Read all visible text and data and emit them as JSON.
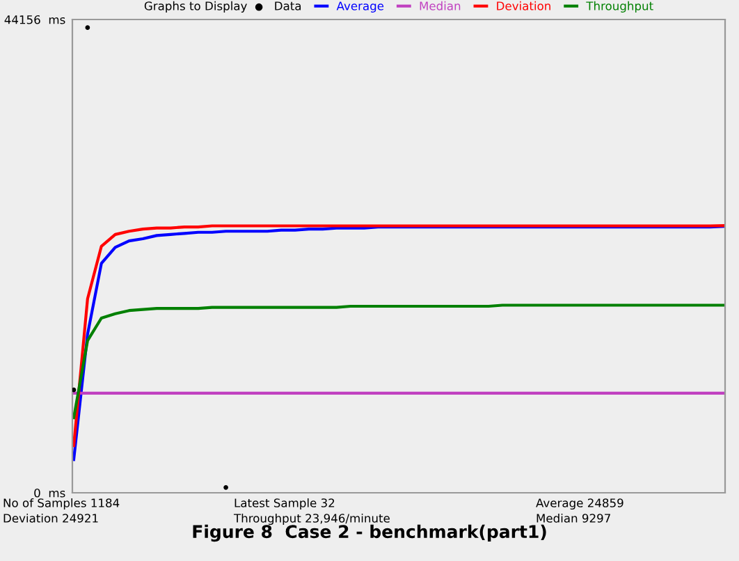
{
  "chart_data": {
    "type": "line",
    "title": "Figure 8  Case 2 - benchmark(part1)",
    "legend_title": "Graphs to Display",
    "legend": "top",
    "tick_labels": "y",
    "categories": [
      null,
      null,
      null,
      null,
      null,
      null,
      null,
      null,
      null,
      null,
      null,
      null,
      null,
      null,
      null,
      null,
      null,
      null,
      null,
      null,
      null,
      null,
      null,
      null,
      null,
      null,
      null,
      null,
      null,
      null,
      null,
      null,
      null,
      null,
      null,
      null,
      null,
      null,
      null,
      null,
      null,
      null,
      null,
      null,
      null,
      null,
      null,
      null
    ],
    "ylim": [
      0,
      44156
    ],
    "yticks": [
      {
        "value": 0,
        "label": "0  ms"
      },
      {
        "value": 44156,
        "label": "44156  ms"
      }
    ],
    "series": [
      {
        "name": "Data",
        "type": "scatter",
        "color": "#000000",
        "values": [
          9600,
          43400,
          null,
          null,
          null,
          null,
          null,
          null,
          null,
          null,
          null,
          500,
          null,
          null,
          null,
          null,
          null,
          null,
          null,
          null,
          null,
          null,
          null,
          null,
          null,
          null,
          null,
          null,
          null,
          null,
          null,
          null,
          null,
          null,
          null,
          null,
          null,
          null,
          null,
          null,
          null,
          null,
          null,
          null,
          null,
          null,
          null,
          null
        ]
      },
      {
        "name": "Average",
        "color": "#0000ff",
        "values": [
          3100,
          14800,
          21400,
          22900,
          23500,
          23700,
          24000,
          24100,
          24200,
          24300,
          24300,
          24400,
          24400,
          24400,
          24400,
          24500,
          24500,
          24600,
          24600,
          24700,
          24700,
          24700,
          24800,
          24800,
          24800,
          24800,
          24800,
          24800,
          24800,
          24800,
          24800,
          24800,
          24800,
          24800,
          24800,
          24800,
          24800,
          24800,
          24800,
          24800,
          24800,
          24800,
          24800,
          24800,
          24800,
          24800,
          24800,
          24859
        ]
      },
      {
        "name": "Median",
        "color": "#c040c0",
        "values": [
          9297,
          9297,
          9297,
          9297,
          9297,
          9297,
          9297,
          9297,
          9297,
          9297,
          9297,
          9297,
          9297,
          9297,
          9297,
          9297,
          9297,
          9297,
          9297,
          9297,
          9297,
          9297,
          9297,
          9297,
          9297,
          9297,
          9297,
          9297,
          9297,
          9297,
          9297,
          9297,
          9297,
          9297,
          9297,
          9297,
          9297,
          9297,
          9297,
          9297,
          9297,
          9297,
          9297,
          9297,
          9297,
          9297,
          9297,
          9297
        ]
      },
      {
        "name": "Deviation",
        "color": "#ff0000",
        "values": [
          4400,
          18100,
          23000,
          24100,
          24400,
          24600,
          24700,
          24700,
          24800,
          24800,
          24900,
          24900,
          24900,
          24900,
          24900,
          24900,
          24900,
          24900,
          24900,
          24900,
          24900,
          24900,
          24900,
          24900,
          24900,
          24900,
          24900,
          24900,
          24900,
          24900,
          24900,
          24900,
          24900,
          24900,
          24900,
          24900,
          24900,
          24900,
          24900,
          24900,
          24900,
          24900,
          24900,
          24900,
          24900,
          24900,
          24900,
          24921
        ]
      },
      {
        "name": "Throughput",
        "color": "#008000",
        "values": [
          7000,
          14200,
          16300,
          16700,
          17000,
          17100,
          17200,
          17200,
          17200,
          17200,
          17300,
          17300,
          17300,
          17300,
          17300,
          17300,
          17300,
          17300,
          17300,
          17300,
          17400,
          17400,
          17400,
          17400,
          17400,
          17400,
          17400,
          17400,
          17400,
          17400,
          17400,
          17500,
          17500,
          17500,
          17500,
          17500,
          17500,
          17500,
          17500,
          17500,
          17500,
          17500,
          17500,
          17500,
          17500,
          17500,
          17500,
          17500
        ]
      }
    ],
    "annotations": [
      "No of Samples 1184",
      "Latest Sample 32",
      "Average 24859",
      "Deviation 24921",
      "Throughput 23,946/minute",
      "Median 9297"
    ]
  }
}
